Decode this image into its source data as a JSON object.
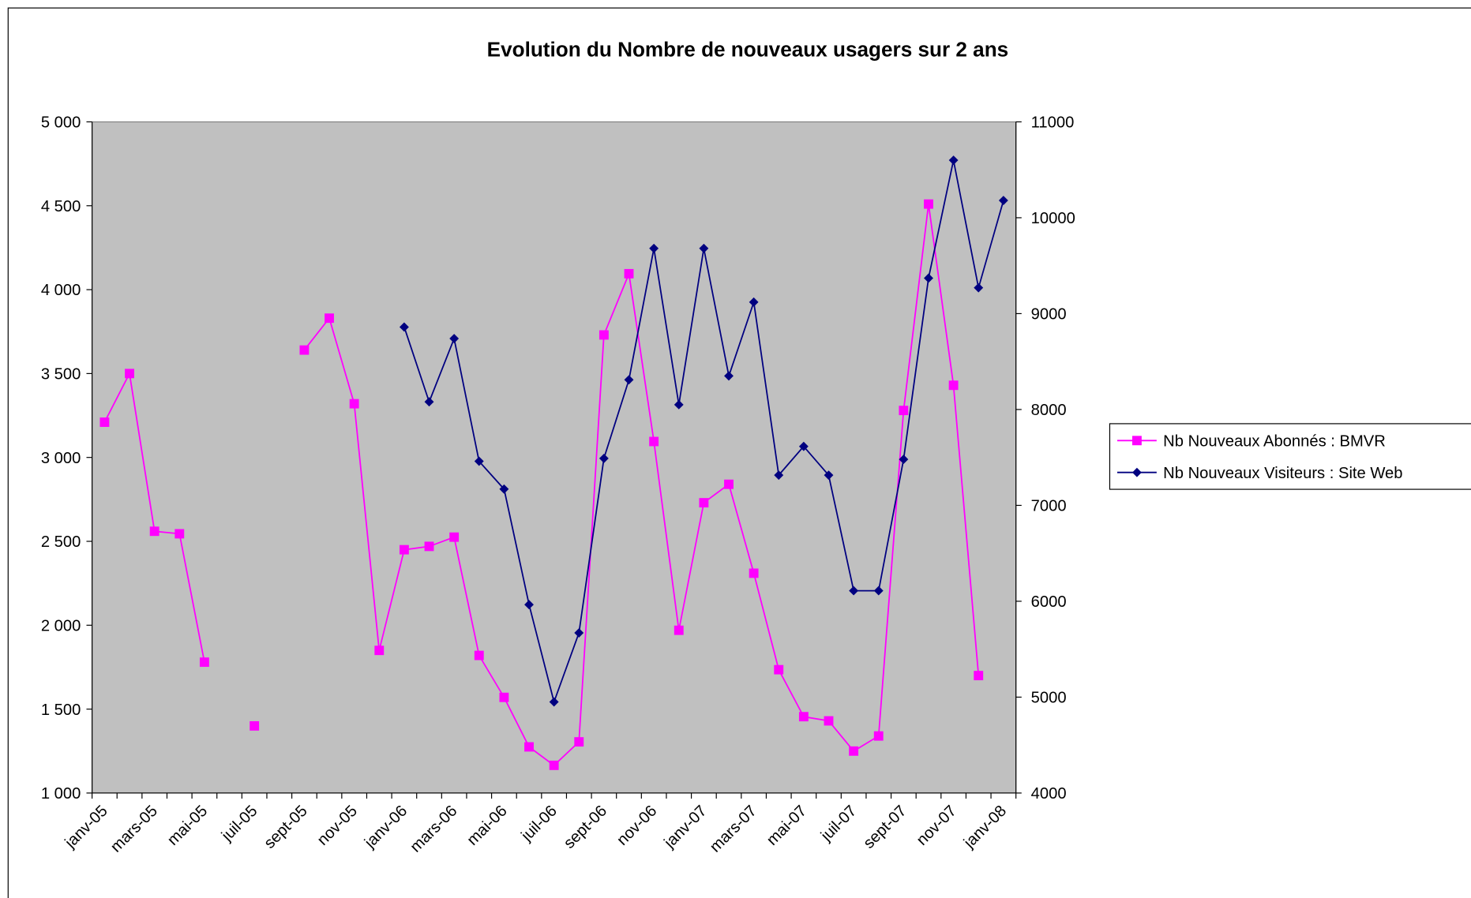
{
  "chart_data": {
    "type": "line",
    "title": "Evolution du Nombre de nouveaux usagers sur 2 ans",
    "categories": [
      "janv-05",
      null,
      "mars-05",
      null,
      "mai-05",
      null,
      "juil-05",
      null,
      "sept-05",
      null,
      "nov-05",
      null,
      "janv-06",
      null,
      "mars-06",
      null,
      "mai-06",
      null,
      "juil-06",
      null,
      "sept-06",
      null,
      "nov-06",
      null,
      "janv-07",
      null,
      "mars-07",
      null,
      "mai-07",
      null,
      "juil-07",
      null,
      "sept-07",
      null,
      "nov-07",
      null,
      "janv-08"
    ],
    "series": [
      {
        "name": "Nb Nouveaux Abonnés : BMVR",
        "color": "#ff00ff",
        "marker": "square",
        "values": [
          3210,
          3500,
          2560,
          2545,
          1780,
          null,
          1400,
          null,
          3640,
          3830,
          3320,
          1850,
          2450,
          2470,
          2525,
          1820,
          1570,
          1275,
          1165,
          1305,
          3730,
          4095,
          3095,
          1970,
          2730,
          2840,
          2310,
          1735,
          1455,
          1430,
          1250,
          1340,
          3280,
          4510,
          3430,
          1700,
          null
        ]
      },
      {
        "name": "Nb Nouveaux Visiteurs : Site Web",
        "color": "#000080",
        "marker": "diamond",
        "axis": "y2",
        "values": [
          null,
          null,
          null,
          null,
          null,
          null,
          null,
          null,
          null,
          null,
          null,
          null,
          8860,
          8080,
          8740,
          7460,
          7170,
          5965,
          4950,
          5670,
          7490,
          8310,
          9680,
          8050,
          9680,
          8350,
          9120,
          7315,
          7615,
          7315,
          6110,
          6110,
          7480,
          9370,
          10600,
          9270,
          10180
        ]
      }
    ],
    "ylim": [
      1000,
      5000
    ],
    "yticks": [
      {
        "value": 1000,
        "label": "1 000"
      },
      {
        "value": 1500,
        "label": "1 500"
      },
      {
        "value": 2000,
        "label": "2 000"
      },
      {
        "value": 2500,
        "label": "2 500"
      },
      {
        "value": 3000,
        "label": "3 000"
      },
      {
        "value": 3500,
        "label": "3 500"
      },
      {
        "value": 4000,
        "label": "4 000"
      },
      {
        "value": 4500,
        "label": "4 500"
      },
      {
        "value": 5000,
        "label": "5 000"
      }
    ],
    "y2lim": [
      4000,
      11000
    ],
    "y2ticks": [
      4000,
      5000,
      6000,
      7000,
      8000,
      9000,
      10000,
      11000
    ],
    "grid": false,
    "plot_background": "#c0c0c0",
    "legend": "right"
  }
}
